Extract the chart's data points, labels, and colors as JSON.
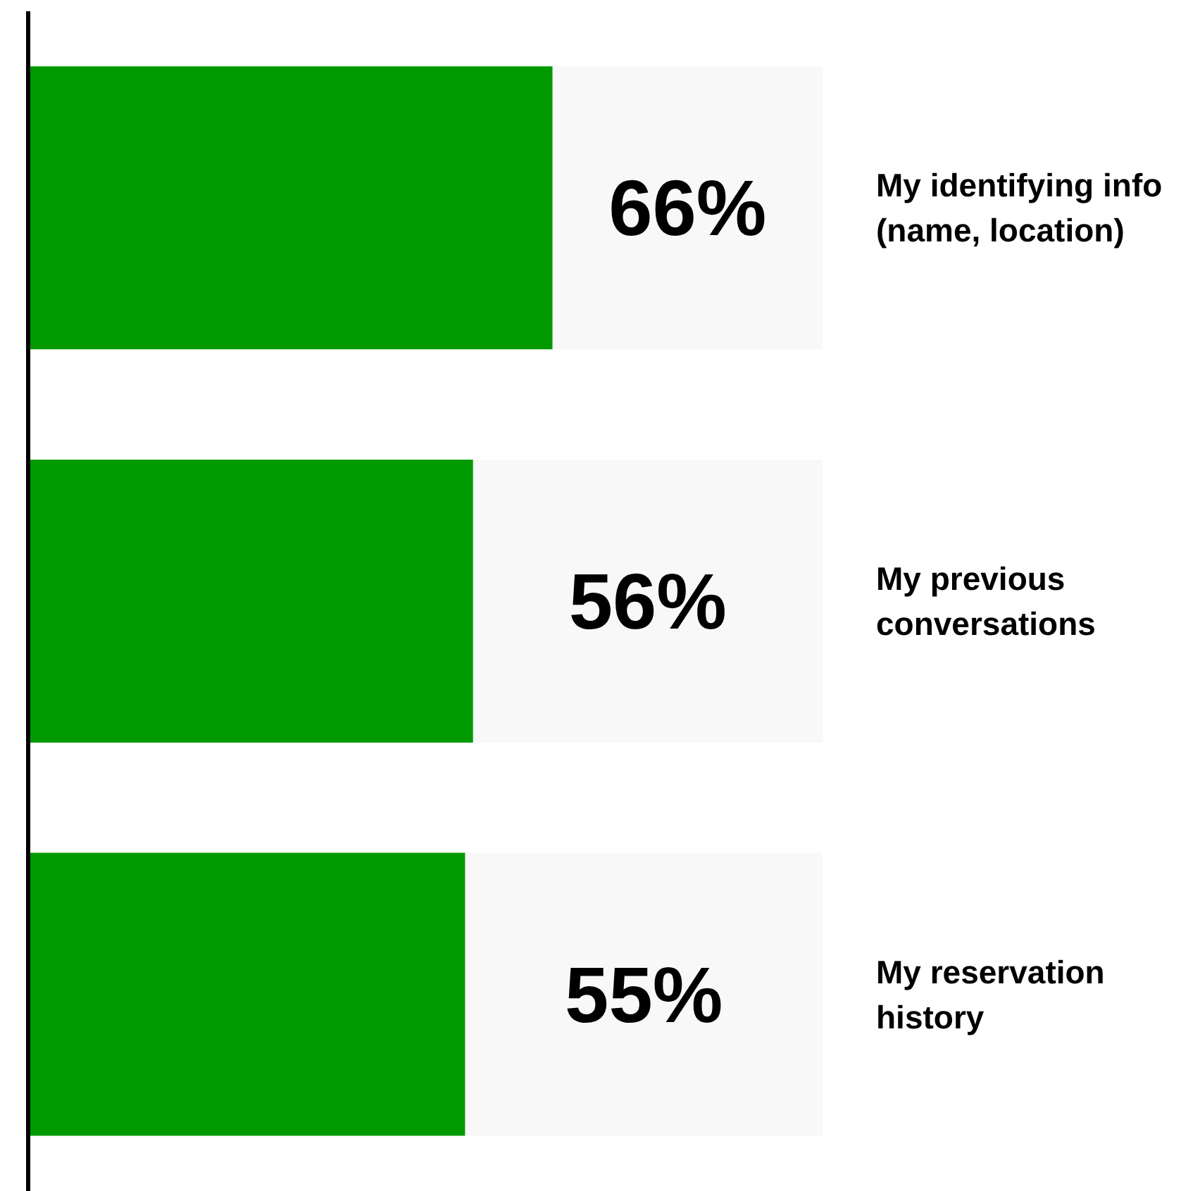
{
  "chart_data": {
    "type": "bar",
    "orientation": "horizontal",
    "categories": [
      "My identifying info (name, location)",
      "My previous conversations",
      "My reservation history"
    ],
    "values": [
      66,
      56,
      55
    ],
    "color": "#009900",
    "xlim": [
      0,
      100
    ],
    "value_labels": [
      "66%",
      "56%",
      "55%"
    ],
    "tick_labels": "y",
    "grid": false,
    "legend": false
  }
}
